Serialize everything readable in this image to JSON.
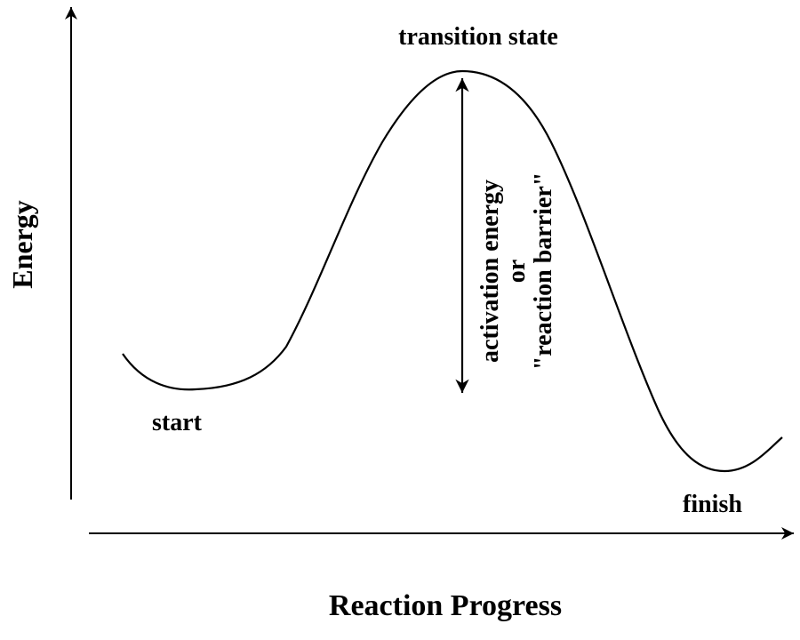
{
  "diagram": {
    "x_axis_label": "Reaction Progress",
    "y_axis_label": "Energy",
    "labels": {
      "transition_state": "transition state",
      "start": "start",
      "finish": "finish",
      "barrier_line1": "activation energy",
      "barrier_line2": "or",
      "barrier_line3": "\"reaction barrier\""
    },
    "colors": {
      "ink": "#000000",
      "background": "#ffffff"
    }
  }
}
